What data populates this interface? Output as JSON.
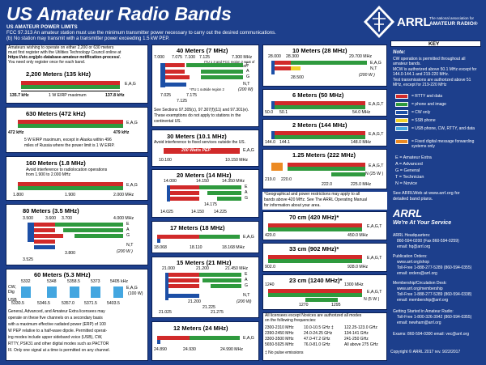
{
  "title": "US Amateur Radio Bands",
  "power_limits": {
    "heading": "US AMATEUR POWER LIMITS",
    "line1": "FCC 97.313   An amateur station must use the minimum transmitter power necessary to carry out the desired communications.",
    "line2": "(b) No station may transmit with a transmitter power exceeding 1.5 kW PEP."
  },
  "logo": {
    "name": "ARRL",
    "tagline": "The national association for",
    "sub": "AMATEUR RADIO®"
  },
  "bands": {
    "m2200": {
      "note1": "Amateurs wishing to operate on either 2,200 or 630 meters",
      "note2": "must first register with the Utilities Technology Council online at",
      "note3": "https://utc.org/plc-database-amateur-notification-process/.",
      "note4": "You need only register once for each band.",
      "title": "2,200 Meters (135 kHz)",
      "lo": "135.7 kHz",
      "hi": "137.8 kHz",
      "label": "1 W EIRP maximum",
      "lic": "E,A,G"
    },
    "m630": {
      "title": "630 Meters (472 kHz)",
      "lo": "472 kHz",
      "hi": "479 kHz",
      "lic": "E,A,G",
      "n1": "5 W EIRP maximum, except in Alaska within 496",
      "n2": "miles of Russia where the power limit is 1 W EIRP."
    },
    "m160": {
      "title": "160 Meters (1.8 MHz)",
      "n1": "Avoid interference to radiolocation operations",
      "n2": "from 1.900 to 2.000 MHz",
      "lic": "E,A,G",
      "t1": "1.800",
      "t2": "1.900",
      "t3": "2.000 MHz"
    },
    "m80": {
      "title": "80 Meters (3.5 MHz)",
      "t1": "3.600",
      "t2": "3.500",
      "t3": "3.700",
      "t4": "4.000 MHz",
      "t5": "3.525",
      "t6": "3.800",
      "lic": [
        "E",
        "A",
        "G",
        "N,T"
      ],
      "pw": "(200 W )"
    },
    "m60": {
      "title": "60 Meters (5.3 MHz)",
      "cw": "CW,",
      "dig": "Dig",
      "usb": "USB",
      "top": [
        "5332",
        "5348",
        "5358.5",
        "5373",
        "5405 kHz"
      ],
      "bot": [
        "5330.5",
        "5346.5",
        "5357.0",
        "5371.5",
        "5403.5"
      ],
      "lic": "E,A,G",
      "wd": "(100 W)",
      "n1": "General, Advanced, and Amateur Extra licensees may",
      "n2": "operate on these five channels on a secondary basis",
      "n3": "with a maximum effective radiated power (ERP) of 100",
      "n4": "W PEP relative to a half-wave dipole. Permitted operat-",
      "n5": "ing modes include upper sideband voice (USB), CW,",
      "n6": "RTTY, PSK31 and other digital modes such as PACTOR",
      "n7": "III. Only one signal at a time is permitted on any channel."
    },
    "m40": {
      "title": "40 Meters (7 MHz)",
      "t1": "7.000",
      "t2": "7.075",
      "t3": "7.100",
      "t4": "7.125",
      "t5": "7.300 MHz",
      "t6": "7.025",
      "t7": "7.175",
      "t8": "7.125",
      "p1": "ITU 1 3 and FCC region 2 west of",
      "p2": "130° west or below 20° north",
      "p3": "*ITU 1 outside region 2",
      "lic": [
        "E",
        "A",
        "G"
      ],
      "nt": "N,T",
      "pw": "(200 W)",
      "n1": "See Sections 97.305(c), 97.307(f)(11) and 97.301(e).",
      "n2": "These exemptions do not apply to stations in the",
      "n3": "continental US."
    },
    "m30": {
      "title": "30 Meters (10.1 MHz)",
      "n1": "Avoid interference to fixed services outside the US.",
      "pep": "200 Watts PEP",
      "t1": "10.100",
      "t2": "10.150 MHz",
      "lic": "E,A,G"
    },
    "m20": {
      "title": "20 Meters (14 MHz)",
      "t1": "14.000",
      "t2": "14.150",
      "t3": "14.350 MHz",
      "t4": "14.025",
      "t5": "14.150",
      "t6": "14.225",
      "t7": "14.175",
      "lic": [
        "E",
        "A",
        "G"
      ]
    },
    "m17": {
      "title": "17 Meters (18 MHz)",
      "t1": "18.068",
      "t2": "18.110",
      "t3": "18.168 MHz",
      "lic": "E,A,G"
    },
    "m15": {
      "title": "15 Meters (21 MHz)",
      "t1": "21.000",
      "t2": "21.200",
      "t3": "21.450 MHz",
      "t4": "21.025",
      "t5": "21.225",
      "t6": "21.275",
      "t7": "21.200",
      "lic": [
        "E",
        "A",
        "G"
      ],
      "nt": "N,T",
      "pw": "(200 W)"
    },
    "m12": {
      "title": "12 Meters (24 MHz)",
      "t1": "24.890",
      "t2": "24.930",
      "t3": "24.990 MHz",
      "lic": "E,A,G"
    },
    "m10": {
      "title": "10 Meters (28 MHz)",
      "t1": "28.000",
      "t2": "28.300",
      "t3": "29.700 MHz",
      "t4": "28.500",
      "lic": "E,A,G",
      "nt": "N,T",
      "pw": "(200 W )"
    },
    "m6": {
      "title": "6 Meters (50 MHz)",
      "t1": "50.0",
      "t2": "50.1",
      "t3": "54.0 MHz",
      "lic": "E,A,G,T"
    },
    "m2": {
      "title": "2 Meters (144 MHz)",
      "t1": "144.0",
      "t2": "144.1",
      "t3": "148.0 MHz",
      "lic": "E,A,G,T"
    },
    "m125": {
      "title": "1.25 Meters (222 MHz)",
      "t1": "219.0",
      "t2": "220.0",
      "t3": "222.0",
      "t4": "225.0 MHz",
      "lic": "E,A,G,T",
      "nw": "N (25 W )"
    },
    "note_geo": {
      "n1": "*Geographical and power restrictions may apply to all",
      "n2": "bands above 420 MHz. See The ARRL Operating Manual",
      "n3": "for information about your area."
    },
    "m70": {
      "title": "70 cm (420 MHz)*",
      "t1": "420.0",
      "t2": "450.0 MHz",
      "lic": "E,A,G,T"
    },
    "m33": {
      "title": "33 cm (902 MHz)*",
      "t1": "902.0",
      "t2": "928.0 MHz",
      "lic": "E,A,G,T"
    },
    "m23": {
      "title": "23 cm (1240 MHz)*",
      "t1": "1240",
      "t2": "1300 MHz",
      "t3": "1270",
      "t4": "1295",
      "lic": "E,A,G,T",
      "nw": "N (5 W )"
    },
    "above": {
      "n1": "All licensees except Novices are authorized all modes",
      "n2": "on the following frequencies:",
      "rows": [
        [
          "2300-2310 MHz",
          "10.0-10.5 GHz ‡",
          "122.25-123.0 GHz"
        ],
        [
          "2390-2450 MHz",
          "24.0-24.25 GHz",
          "134-141 GHz"
        ],
        [
          "3300-3500 MHz",
          "47.0-47.2 GHz",
          "241-250 GHz"
        ],
        [
          "5650-5925 MHz",
          "76.0-81.0 GHz",
          "All above 275 GHz"
        ]
      ],
      "foot": "‡ No pulse emissions"
    }
  },
  "key": {
    "heading": "KEY",
    "note_title": "Note:",
    "notes": [
      "CW operation is permitted throughout all amateur bands.",
      "MCW is authorized above 50.1 MHz except for 144.0-144.1 and 219-220 MHz.",
      "Test transmissions are authorized above 51 MHz, except for 219-220 MHz"
    ],
    "legend": [
      {
        "label": "= RTTY and data",
        "color": "#d12a2a"
      },
      {
        "label": "= phone and image",
        "color": "#2f9a3e"
      },
      {
        "label": "= CW only",
        "color": "#1c4fa6"
      },
      {
        "label": "= SSB phone",
        "color": "#f0d22b"
      },
      {
        "label": "= USB phone, CW, RTTY, and data",
        "color": "#43a6e0"
      },
      {
        "label": "= Fixed digital message forwarding systems only",
        "color": "#ec8a23"
      }
    ],
    "classes": [
      "E = Amateur Extra",
      "A = Advanced",
      "G = General",
      "T = Technician",
      "N = Novice"
    ],
    "web1": "See ARRLWeb at www.arrl.org for",
    "web2": "detailed band plans.",
    "arrl": "ARRL",
    "arrl_sub": "We're At Your Service",
    "hq": [
      "ARRL Headquarters:",
      "860-594-0200 (Fax 860-594-0259)",
      "email: hq@arrl.org"
    ],
    "pub": [
      "Publication Orders:",
      "www.arrl.org/shop",
      "Toll-Free 1-888-277-5289 (860-594-0355)",
      "email: orders@arrl.org"
    ],
    "mem": [
      "Membership/Circulation Desk:",
      "www.arrl.org/membership",
      "Toll-Free 1-888-277-5289 (860-594-0338)",
      "email: membership@arrl.org"
    ],
    "start": [
      "Getting Started in Amateur Radio:",
      "Toll-Free 1-800-326-3942 (860-594-0355)",
      "email: newham@arrl.org"
    ],
    "exams": "Exams:  860-594-0300        email: vec@arrl.org"
  },
  "copyright": "Copyright © ARRL 2017     rev. 9/22/2017"
}
